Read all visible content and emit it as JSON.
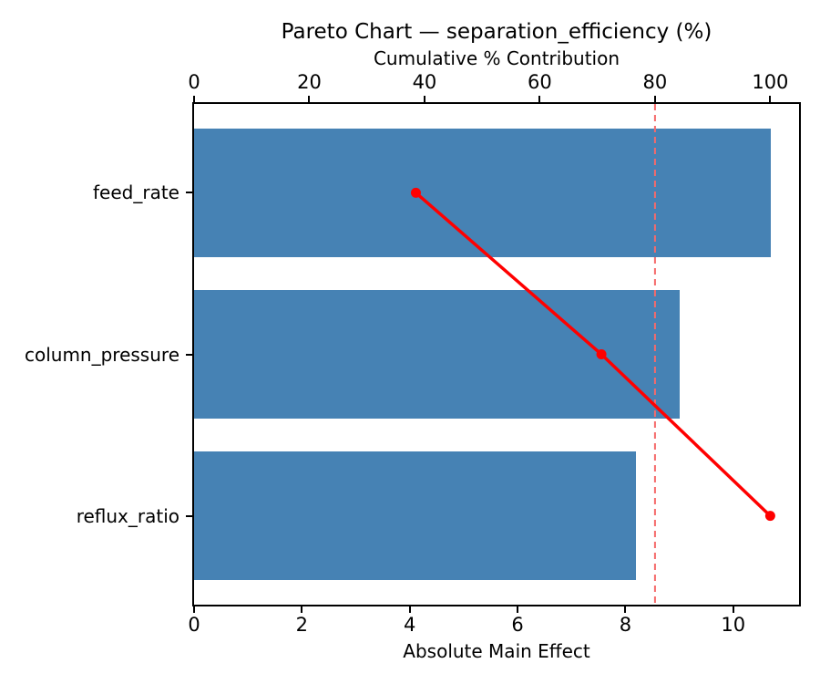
{
  "chart_data": {
    "type": "bar",
    "subtype": "pareto-horizontal-bars-with-cumulative-line",
    "title": "Pareto Chart — separation_efficiency (%)",
    "top_axis_label": "Cumulative % Contribution",
    "bottom_axis_label": "Absolute Main Effect",
    "categories": [
      "feed_rate",
      "column_pressure",
      "reflux_ratio"
    ],
    "series": [
      {
        "name": "Absolute Main Effect",
        "type": "bar",
        "values": [
          10.7,
          9.0,
          8.2
        ]
      },
      {
        "name": "Cumulative % Contribution",
        "type": "line",
        "values": [
          38.5,
          70.7,
          100.0
        ]
      }
    ],
    "threshold_pct": 80,
    "bottom_axis_ticks": [
      0,
      2,
      4,
      6,
      8,
      10
    ],
    "top_axis_ticks": [
      0,
      20,
      40,
      60,
      80,
      100
    ],
    "bottom_xlim": [
      0,
      11.22
    ],
    "top_xlim": [
      0,
      105
    ],
    "grid": false,
    "legend": "none",
    "colors": {
      "bar": "#4682B4",
      "cumulative_line": "#FF0000",
      "threshold_line": "#F56B6B",
      "axis": "#000000",
      "text": "#000000"
    }
  }
}
